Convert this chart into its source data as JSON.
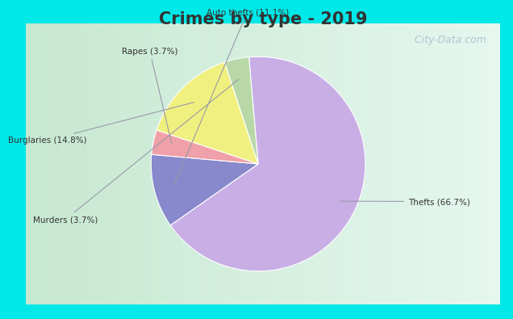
{
  "title": "Crimes by type - 2019",
  "labels": [
    "Thefts",
    "Auto thefts",
    "Rapes",
    "Burglaries",
    "Murders"
  ],
  "percentages": [
    66.7,
    11.1,
    3.7,
    14.8,
    3.7
  ],
  "colors": [
    "#c9aee5",
    "#8888cc",
    "#f0a0a8",
    "#f0f080",
    "#b8d8a8"
  ],
  "label_texts": [
    "Thefts (66.7%)",
    "Auto thefts (11.1%)",
    "Rapes (3.7%)",
    "Burglaries (14.8%)",
    "Murders (3.7%)"
  ],
  "background_cyan": "#00e8e8",
  "background_inner": "#d4edd8",
  "title_fontsize": 15,
  "title_color": "#333333",
  "watermark": "  City-Data.com",
  "watermark_color": "#aabbc8"
}
